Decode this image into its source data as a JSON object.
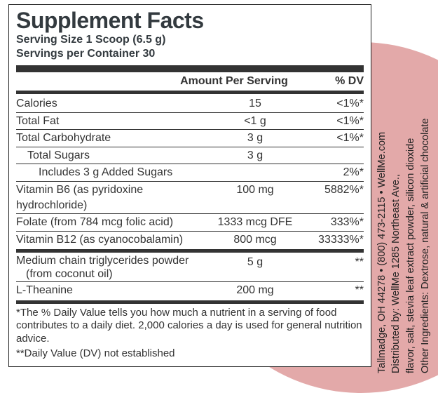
{
  "panel": {
    "title": "Supplement Facts",
    "serving_size": "Serving Size 1 Scoop (6.5 g)",
    "servings_per": "Servings per Container 30",
    "header_amount": "Amount Per Serving",
    "header_dv": "% DV",
    "rows": [
      {
        "name": "Calories",
        "amount": "15",
        "dv": "<1%*",
        "indent": 0,
        "rule": "thin"
      },
      {
        "name": "Total Fat",
        "amount": "<1 g",
        "dv": "<1%*",
        "indent": 0,
        "rule": "thin"
      },
      {
        "name": "Total Carbohydrate",
        "amount": "3 g",
        "dv": "<1%*",
        "indent": 0,
        "rule": "thin"
      },
      {
        "name": "Total Sugars",
        "amount": "3 g",
        "dv": "",
        "indent": 1,
        "rule": "thin"
      },
      {
        "name": "Includes 3 g Added Sugars",
        "amount": "",
        "dv": "2%*",
        "indent": 2,
        "rule": "thin"
      },
      {
        "name": "Vitamin B6 (as pyridoxine hydrochloride)",
        "amount": "100 mg",
        "dv": "5882%*",
        "indent": 0,
        "rule": "thin"
      },
      {
        "name": "Folate (from 784 mcg folic acid)",
        "amount": "1333 mcg DFE",
        "dv": "333%*",
        "indent": 0,
        "rule": "thin"
      },
      {
        "name": "Vitamin B12 (as cyanocobalamin)",
        "amount": "800 mcg",
        "dv": "33333%*",
        "indent": 0,
        "rule": "med"
      },
      {
        "name": "Medium chain triglycerides powder\n(from coconut oil)",
        "amount": "5 g",
        "dv": "**",
        "indent": 0,
        "rule": "thin"
      },
      {
        "name": "L-Theanine",
        "amount": "200 mg",
        "dv": "**",
        "indent": 0,
        "rule": "med"
      }
    ],
    "footnote1": "*The % Daily Value tells you how much a nutrient in a serving of food contributes to a daily diet. 2,000 calories a day is used for general nutrition advice.",
    "footnote2": "**Daily Value (DV) not established"
  },
  "side": {
    "ingredients_l1": "Other Ingredients: Dextrose, natural & artificial chocolate",
    "ingredients_l2": "flavor, salt, stevia leaf extract powder, silicon dioxide",
    "dist_l1": "Distributed by: WellMe 1285 Northeast Ave.,",
    "dist_l2": "Tallmadge, OH 44278 • (800) 473-2115 • WellMe.com"
  },
  "style": {
    "bg_circle_color": "#e3a9a9",
    "panel_border": "#222222",
    "text_color": "#333333"
  }
}
